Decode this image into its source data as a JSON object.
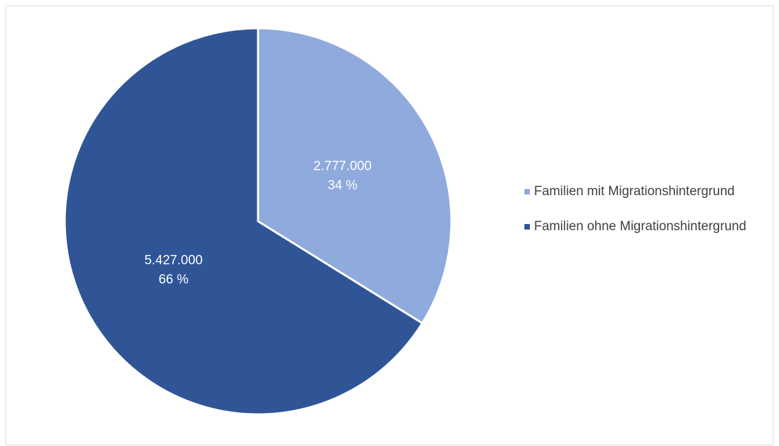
{
  "chart_data": {
    "type": "pie",
    "title": "",
    "categories": [
      "Familien mit Migrationshintergrund",
      "Familien ohne Migrationshintergrund"
    ],
    "values": [
      2777000,
      5427000
    ],
    "value_labels": [
      "2.777.000",
      "5.427.000"
    ],
    "percent_labels": [
      "34 %",
      "66 %"
    ],
    "colors": [
      "#8faadc",
      "#2f5597"
    ],
    "legend_position": "right",
    "start_angle": "12 o'clock",
    "direction": "clockwise"
  }
}
